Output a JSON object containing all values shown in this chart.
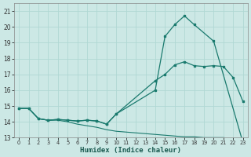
{
  "xlabel": "Humidex (Indice chaleur)",
  "xlim": [
    -0.5,
    23.5
  ],
  "ylim": [
    13,
    21.5
  ],
  "yticks": [
    13,
    14,
    15,
    16,
    17,
    18,
    19,
    20,
    21
  ],
  "xticks": [
    0,
    1,
    2,
    3,
    4,
    5,
    6,
    7,
    8,
    9,
    10,
    11,
    12,
    13,
    14,
    15,
    16,
    17,
    18,
    19,
    20,
    21,
    22,
    23
  ],
  "bg_color": "#cce8e5",
  "grid_color": "#b0d8d4",
  "line_color": "#1a7a6e",
  "curve1_x": [
    0,
    1,
    2,
    3,
    4,
    5,
    6,
    7,
    8,
    9,
    10,
    14,
    15,
    16,
    17,
    18,
    20,
    23
  ],
  "curve1_y": [
    14.85,
    14.85,
    14.2,
    14.1,
    14.15,
    14.1,
    14.05,
    14.1,
    14.05,
    13.85,
    14.5,
    16.0,
    19.4,
    20.15,
    20.7,
    20.15,
    19.1,
    12.7
  ],
  "curve2_x": [
    0,
    1,
    2,
    3,
    4,
    5,
    6,
    7,
    8,
    9,
    10,
    14,
    15,
    16,
    17,
    18,
    19,
    20,
    21,
    22,
    23
  ],
  "curve2_y": [
    14.85,
    14.85,
    14.2,
    14.1,
    14.15,
    14.1,
    14.05,
    14.1,
    14.05,
    13.85,
    14.5,
    16.6,
    17.0,
    17.6,
    17.8,
    17.55,
    17.5,
    17.55,
    17.5,
    16.8,
    15.3
  ],
  "curve3_x": [
    0,
    1,
    2,
    3,
    4,
    5,
    6,
    7,
    8,
    9,
    10,
    11,
    12,
    13,
    14,
    15,
    16,
    17,
    18,
    19,
    20,
    21,
    22,
    23
  ],
  "curve3_y": [
    14.85,
    14.85,
    14.2,
    14.1,
    14.1,
    14.0,
    13.85,
    13.75,
    13.65,
    13.5,
    13.4,
    13.35,
    13.3,
    13.25,
    13.2,
    13.15,
    13.1,
    13.05,
    13.05,
    13.0,
    13.0,
    13.0,
    12.92,
    12.72
  ]
}
